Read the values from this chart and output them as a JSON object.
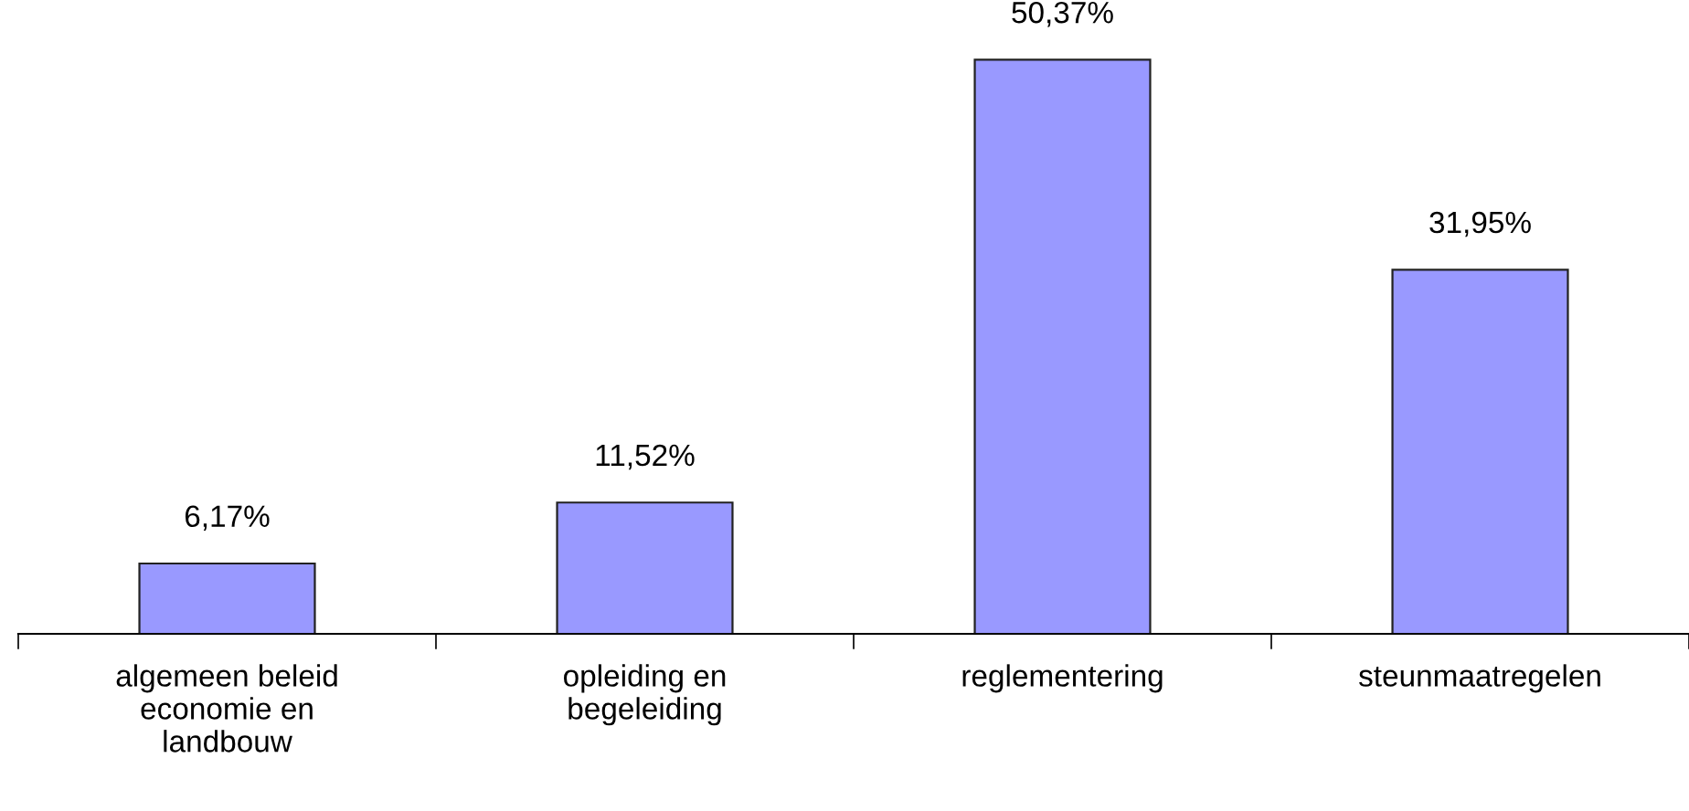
{
  "chart_data": {
    "type": "bar",
    "categories": [
      "algemeen beleid\neconomie en\nlandbouw",
      "opleiding en\nbegeleiding",
      "reglementering",
      "steunmaatregelen"
    ],
    "values": [
      6.17,
      11.52,
      50.37,
      31.95
    ],
    "value_labels": [
      "6,17%",
      "11,52%",
      "50,37%",
      "31,95%"
    ],
    "color": "#9999ff",
    "grid": false,
    "legend": false
  }
}
